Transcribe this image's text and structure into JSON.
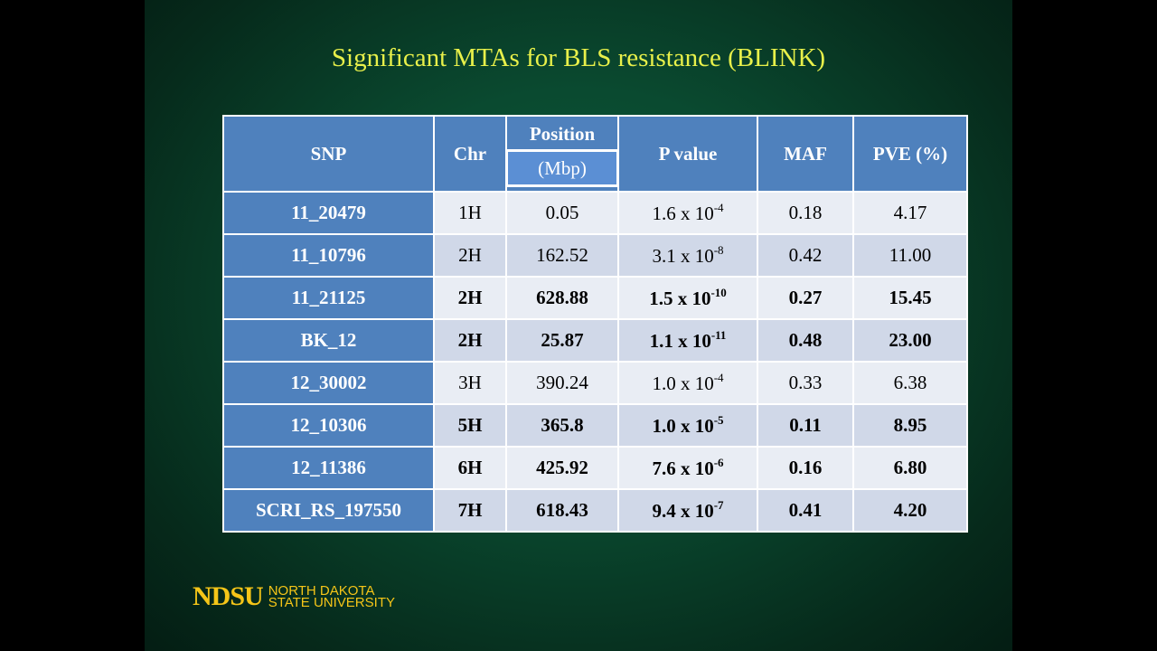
{
  "slide": {
    "title": "Significant MTAs for BLS resistance (BLINK)",
    "table": {
      "headers": [
        "SNP",
        "Chr",
        "Position",
        "P value",
        "MAF",
        "PVE (%)"
      ],
      "position_unit": "(Mbp)",
      "rows": [
        {
          "snp": "11_20479",
          "chr": "1H",
          "position": "0.05",
          "p_value": {
            "base": "1.6 x 10",
            "exponent": "-4"
          },
          "maf": "0.18",
          "pve": "4.17",
          "bold": false
        },
        {
          "snp": "11_10796",
          "chr": "2H",
          "position": "162.52",
          "p_value": {
            "base": "3.1 x 10",
            "exponent": "-8"
          },
          "maf": "0.42",
          "pve": "11.00",
          "bold": false
        },
        {
          "snp": "11_21125",
          "chr": "2H",
          "position": "628.88",
          "p_value": {
            "base": "1.5 x 10",
            "exponent": "-10"
          },
          "maf": "0.27",
          "pve": "15.45",
          "bold": true
        },
        {
          "snp": "BK_12",
          "chr": "2H",
          "position": "25.87",
          "p_value": {
            "base": "1.1 x 10",
            "exponent": "-11"
          },
          "maf": "0.48",
          "pve": "23.00",
          "bold": true
        },
        {
          "snp": "12_30002",
          "chr": "3H",
          "position": "390.24",
          "p_value": {
            "base": "1.0 x 10",
            "exponent": "-4"
          },
          "maf": "0.33",
          "pve": "6.38",
          "bold": false
        },
        {
          "snp": "12_10306",
          "chr": "5H",
          "position": "365.8",
          "p_value": {
            "base": "1.0 x 10",
            "exponent": "-5"
          },
          "maf": "0.11",
          "pve": "8.95",
          "bold": true
        },
        {
          "snp": "12_11386",
          "chr": "6H",
          "position": "425.92",
          "p_value": {
            "base": "7.6 x 10",
            "exponent": "-6"
          },
          "maf": "0.16",
          "pve": "6.80",
          "bold": true
        },
        {
          "snp": "SCRI_RS_197550",
          "chr": "7H",
          "position": "618.43",
          "p_value": {
            "base": "9.4 x 10",
            "exponent": "-7"
          },
          "maf": "0.41",
          "pve": "4.20",
          "bold": true
        }
      ]
    },
    "logo": {
      "mark": "NDSU",
      "line1": "NORTH DAKOTA",
      "line2": "STATE UNIVERSITY"
    }
  }
}
